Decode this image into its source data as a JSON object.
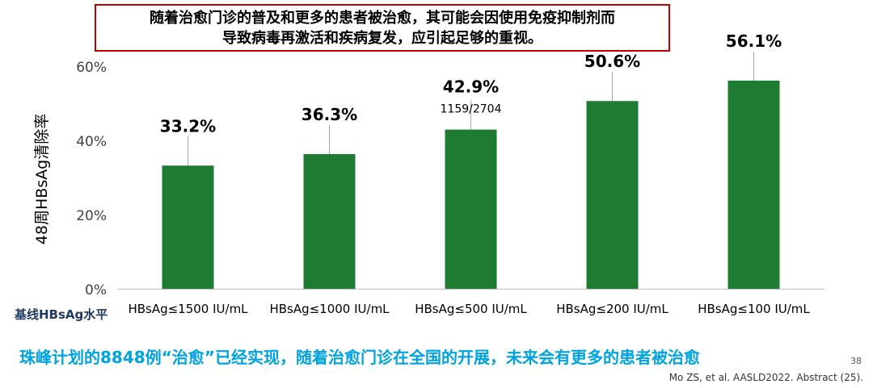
{
  "callout": {
    "line1": "随着治愈门诊的普及和更多的患者被治愈，其可能会因使用免疫抑制剂而",
    "line2": "导致病毒再激活和疾病复发，应引起足够的重视。"
  },
  "chart_data": {
    "type": "bar",
    "title": "",
    "xlabel": "基线HBsAg水平",
    "ylabel": "48周HBsAg清除率",
    "categories": [
      "HBsAg≤1500 IU/mL",
      "HBsAg≤1000 IU/mL",
      "HBsAg≤500 IU/mL",
      "HBsAg≤200 IU/mL",
      "HBsAg≤100 IU/mL"
    ],
    "values": [
      33.2,
      36.3,
      42.9,
      50.6,
      56.1
    ],
    "value_labels": [
      "33.2%",
      "36.3%",
      "42.9%",
      "50.6%",
      "56.1%"
    ],
    "annotations": [
      {
        "category": "HBsAg≤500 IU/mL",
        "text": "1159/2704"
      }
    ],
    "ylim": [
      0,
      60
    ],
    "yticks": [
      0,
      20,
      40,
      60
    ],
    "ytick_labels": [
      "0%",
      "20%",
      "40%",
      "60%"
    ],
    "grid": false,
    "bar_color": "#1e7b32"
  },
  "footer": {
    "text": "珠峰计划的8848例“治愈”已经实现，随着治愈门诊在全国的开展，未来会有更多的患者被治愈",
    "text_color": "#00a3e0",
    "page_number": "38",
    "citation": "Mo ZS, et al. AASLD2022. Abstract (25)."
  }
}
